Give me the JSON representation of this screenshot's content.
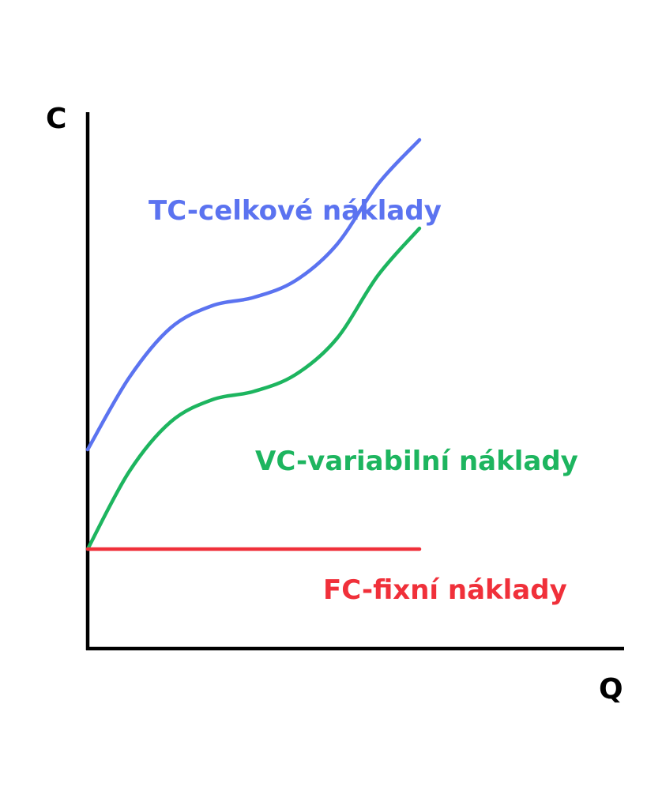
{
  "chart_data": {
    "type": "line",
    "title": "",
    "xlabel": "Q",
    "ylabel": "C",
    "grid": false,
    "legend": "inline labels next to curves",
    "xlim": [
      0,
      10
    ],
    "ylim": [
      0,
      10
    ],
    "series": [
      {
        "name": "TC-celkové náklady",
        "color": "#5b73f0",
        "points": [
          [
            0,
            3.6
          ],
          [
            1,
            4.9
          ],
          [
            2,
            5.8
          ],
          [
            3,
            6.2
          ],
          [
            4,
            6.35
          ],
          [
            5,
            6.65
          ],
          [
            6,
            7.3
          ],
          [
            7,
            8.4
          ],
          [
            8,
            9.2
          ]
        ]
      },
      {
        "name": "VC-variabilní náklady",
        "color": "#1db55f",
        "points": [
          [
            0,
            1.8
          ],
          [
            1,
            3.2
          ],
          [
            2,
            4.1
          ],
          [
            3,
            4.5
          ],
          [
            4,
            4.65
          ],
          [
            5,
            4.95
          ],
          [
            6,
            5.6
          ],
          [
            7,
            6.75
          ],
          [
            8,
            7.6
          ]
        ]
      },
      {
        "name": "FC-fixní náklady",
        "color": "#f0303a",
        "points": [
          [
            0,
            1.8
          ],
          [
            8,
            1.8
          ]
        ]
      }
    ]
  }
}
